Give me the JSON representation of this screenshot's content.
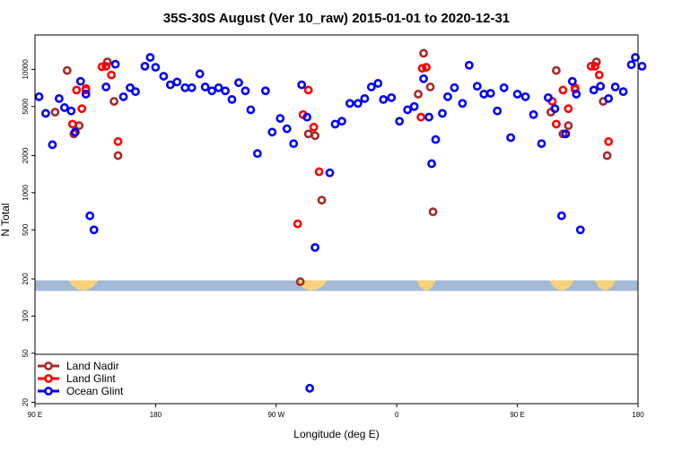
{
  "chart_data": {
    "type": "scatter",
    "title": "35S-30S August (Ver 10_raw)   2015-01-01 to 2020-12-31",
    "xlabel": "Longitude (deg E)",
    "ylabel": "N Total",
    "x_scale": "linear",
    "y_scale": "log",
    "xlim": [
      90,
      540
    ],
    "ylim": [
      19.5,
      19000
    ],
    "x_ticks": [
      {
        "value": 90,
        "label": "90 E"
      },
      {
        "value": 180,
        "label": "180"
      },
      {
        "value": 270,
        "label": "90 W"
      },
      {
        "value": 360,
        "label": "0"
      },
      {
        "value": 450,
        "label": "90 E"
      },
      {
        "value": 540,
        "label": "180"
      }
    ],
    "y_ticks": [
      {
        "value": 20,
        "label": "20"
      },
      {
        "value": 50,
        "label": "50"
      },
      {
        "value": 100,
        "label": "100"
      },
      {
        "value": 200,
        "label": "200"
      },
      {
        "value": 500,
        "label": "500"
      },
      {
        "value": 1000,
        "label": "1000"
      },
      {
        "value": 2000,
        "label": "2000"
      },
      {
        "value": 5000,
        "label": "5000"
      },
      {
        "value": 10000,
        "label": "10000"
      }
    ],
    "colors": {
      "land_nadir": "#a52a2a",
      "land_glint": "#ff0000",
      "ocean_glint": "#0000ff",
      "map_ocean": "#a3b9d6",
      "map_land": "#f7d27a"
    },
    "legend": {
      "position": "bottom-left",
      "entries": [
        {
          "name": "Land Nadir",
          "series": "land_nadir"
        },
        {
          "name": "Land Glint",
          "series": "land_glint"
        },
        {
          "name": "Ocean Glint",
          "series": "ocean_glint"
        }
      ]
    },
    "map_strip": {
      "y_range": [
        160,
        195
      ],
      "land_longitudes": [
        [
          115,
          137
        ],
        [
          285,
          308
        ],
        [
          375,
          389
        ],
        [
          474,
          492
        ],
        [
          508,
          523
        ]
      ]
    },
    "series": [
      {
        "name": "Land Nadir",
        "key": "land_nadir",
        "points": [
          [
            105,
            4500
          ],
          [
            114,
            9800
          ],
          [
            119,
            3000
          ],
          [
            123,
            3500
          ],
          [
            144,
            11500
          ],
          [
            149,
            5500
          ],
          [
            152,
            2000
          ],
          [
            288,
            190
          ],
          [
            294,
            3000
          ],
          [
            299,
            2900
          ],
          [
            304,
            870
          ],
          [
            376,
            6300
          ],
          [
            380,
            13500
          ],
          [
            385,
            7200
          ],
          [
            387,
            700
          ],
          [
            475,
            4500
          ],
          [
            479,
            9800
          ],
          [
            484,
            3000
          ],
          [
            488,
            3500
          ],
          [
            509,
            11500
          ],
          [
            514,
            5500
          ],
          [
            517,
            2000
          ]
        ]
      },
      {
        "name": "Land Glint",
        "key": "land_glint",
        "points": [
          [
            118,
            3600
          ],
          [
            121,
            6800
          ],
          [
            125,
            4800
          ],
          [
            128,
            6800
          ],
          [
            128,
            7000
          ],
          [
            140,
            10500
          ],
          [
            143,
            10600
          ],
          [
            147,
            9000
          ],
          [
            152,
            2600
          ],
          [
            286,
            560
          ],
          [
            290,
            4300
          ],
          [
            294,
            6800
          ],
          [
            298,
            3400
          ],
          [
            302,
            1480
          ],
          [
            378,
            4100
          ],
          [
            379,
            10200
          ],
          [
            382,
            10400
          ],
          [
            476,
            5500
          ],
          [
            479,
            3600
          ],
          [
            484,
            6800
          ],
          [
            488,
            4800
          ],
          [
            493,
            6900
          ],
          [
            493,
            7100
          ],
          [
            505,
            10600
          ],
          [
            508,
            10600
          ],
          [
            511,
            9000
          ],
          [
            518,
            2600
          ]
        ]
      },
      {
        "name": "Ocean Glint",
        "key": "ocean_glint",
        "points": [
          [
            93,
            6000
          ],
          [
            98,
            4400
          ],
          [
            103,
            2450
          ],
          [
            108,
            5800
          ],
          [
            112,
            4900
          ],
          [
            117,
            4600
          ],
          [
            120,
            3100
          ],
          [
            124,
            8000
          ],
          [
            128,
            6300
          ],
          [
            131,
            650
          ],
          [
            134,
            500
          ],
          [
            143,
            7200
          ],
          [
            150,
            11000
          ],
          [
            156,
            6000
          ],
          [
            161,
            7100
          ],
          [
            165,
            6600
          ],
          [
            172,
            10600
          ],
          [
            176,
            12500
          ],
          [
            180,
            10400
          ],
          [
            186,
            8800
          ],
          [
            191,
            7500
          ],
          [
            196,
            7900
          ],
          [
            202,
            7100
          ],
          [
            207,
            7100
          ],
          [
            213,
            9200
          ],
          [
            217,
            7200
          ],
          [
            222,
            6700
          ],
          [
            227,
            7100
          ],
          [
            232,
            6700
          ],
          [
            237,
            5700
          ],
          [
            242,
            7800
          ],
          [
            247,
            6700
          ],
          [
            251,
            4700
          ],
          [
            256,
            2080
          ],
          [
            262,
            6700
          ],
          [
            267,
            3100
          ],
          [
            273,
            4000
          ],
          [
            278,
            3300
          ],
          [
            283,
            2500
          ],
          [
            289,
            7500
          ],
          [
            293,
            4100
          ],
          [
            299,
            360
          ],
          [
            310,
            1450
          ],
          [
            314,
            3600
          ],
          [
            319,
            3800
          ],
          [
            325,
            5300
          ],
          [
            331,
            5300
          ],
          [
            336,
            5800
          ],
          [
            341,
            7200
          ],
          [
            346,
            7700
          ],
          [
            350,
            5700
          ],
          [
            356,
            5900
          ],
          [
            362,
            3800
          ],
          [
            368,
            4700
          ],
          [
            373,
            5000
          ],
          [
            380,
            8400
          ],
          [
            384,
            4100
          ],
          [
            386,
            1720
          ],
          [
            389,
            2700
          ],
          [
            394,
            4400
          ],
          [
            398,
            6000
          ],
          [
            403,
            7100
          ],
          [
            409,
            5300
          ],
          [
            414,
            10800
          ],
          [
            420,
            7300
          ],
          [
            425,
            6300
          ],
          [
            430,
            6400
          ],
          [
            435,
            4600
          ],
          [
            440,
            7100
          ],
          [
            445,
            2800
          ],
          [
            450,
            6300
          ],
          [
            456,
            6000
          ],
          [
            462,
            4300
          ],
          [
            468,
            2500
          ],
          [
            473,
            5900
          ],
          [
            478,
            4800
          ],
          [
            483,
            650
          ],
          [
            486,
            3000
          ],
          [
            491,
            8000
          ],
          [
            494,
            6300
          ],
          [
            497,
            500
          ],
          [
            507,
            6800
          ],
          [
            512,
            7300
          ],
          [
            518,
            5800
          ],
          [
            523,
            7200
          ],
          [
            529,
            6600
          ],
          [
            535,
            10900
          ],
          [
            538,
            12500
          ],
          [
            543,
            10600
          ],
          [
            295,
            26
          ]
        ]
      }
    ]
  }
}
